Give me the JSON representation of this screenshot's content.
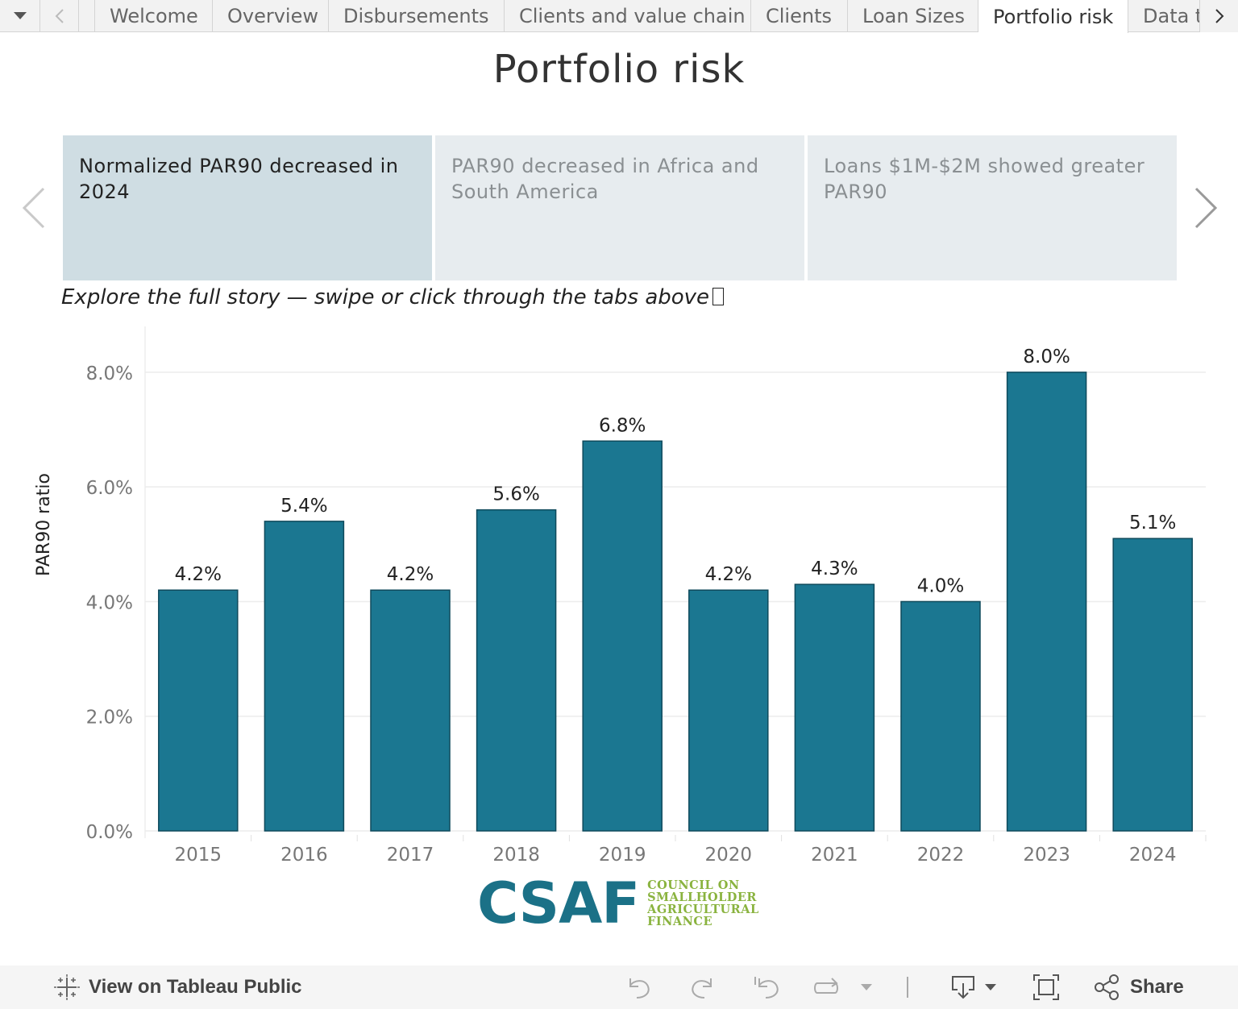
{
  "tabs": {
    "items": [
      "Welcome",
      "Overview",
      "Disbursements",
      "Clients and value chain",
      "Clients",
      "Loan Sizes",
      "Portfolio risk",
      "Data t"
    ],
    "active_index": 6
  },
  "page_title": "Portfolio risk",
  "story_points": [
    {
      "text": "Normalized PAR90 decreased in 2024",
      "active": true
    },
    {
      "text": "PAR90 decreased in Africa and South America",
      "active": false
    },
    {
      "text": "Loans $1M-$2M showed greater PAR90",
      "active": false
    }
  ],
  "caption": "Explore the full story — swipe or click through the tabs above",
  "chart_data": {
    "type": "bar",
    "categories": [
      "2015",
      "2016",
      "2017",
      "2018",
      "2019",
      "2020",
      "2021",
      "2022",
      "2023",
      "2024"
    ],
    "values": [
      4.2,
      5.4,
      4.2,
      5.6,
      6.8,
      4.2,
      4.3,
      4.0,
      8.0,
      5.1
    ],
    "data_labels": [
      "4.2%",
      "5.4%",
      "4.2%",
      "5.6%",
      "6.8%",
      "4.2%",
      "4.3%",
      "4.0%",
      "8.0%",
      "5.1%"
    ],
    "ylabel": "PAR90 ratio",
    "yticks": [
      "0.0%",
      "2.0%",
      "4.0%",
      "6.0%",
      "8.0%"
    ],
    "ytick_values": [
      0,
      2,
      4,
      6,
      8
    ],
    "ylim": [
      0,
      8.8
    ],
    "bar_color": "#1b7791",
    "grid": true
  },
  "logo": {
    "main": "CSAF",
    "sub": [
      "COUNCIL ON",
      "SMALLHOLDER",
      "AGRICULTURAL",
      "FINANCE"
    ]
  },
  "toolbar": {
    "view_label": "View on Tableau Public",
    "share_label": "Share"
  },
  "colors": {
    "brand_blue": "#1b7187",
    "brand_green": "#8ab33f",
    "story_active": "#cfdde3",
    "story_inactive": "#e7ecef"
  }
}
